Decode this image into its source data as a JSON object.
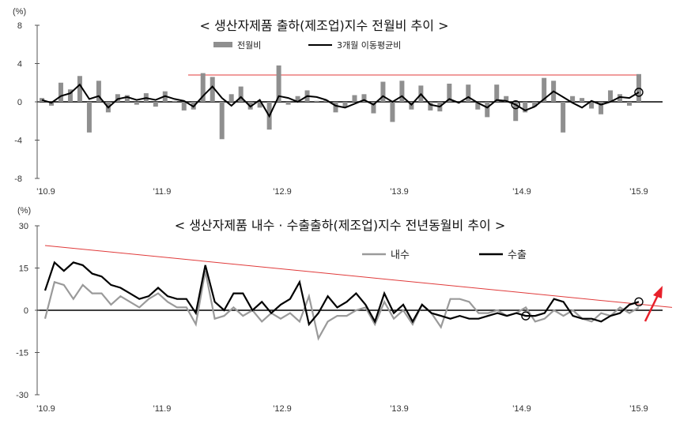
{
  "colors": {
    "bar": "#8f8f8f",
    "line_dark": "#000000",
    "line_gray": "#9a9a9a",
    "trend_red": "#e03a3a",
    "arrow_red": "#e8202a"
  },
  "chart_data": [
    {
      "type": "bar",
      "title": "< 생산자제품 출하(제조업)지수 전월비 추이 >",
      "yunit": "(%)",
      "ylim": [
        -8,
        8
      ],
      "yticks": [
        8,
        4,
        0,
        -4,
        -8
      ],
      "xtick_labels": [
        "'10.9",
        "'11.9",
        "'12.9",
        "'13.9",
        "'14.9",
        "'15.9"
      ],
      "grid": false,
      "legend_position": "top-right",
      "series": [
        {
          "name": "전월비",
          "kind": "bar",
          "values": [
            0.4,
            -0.4,
            2.0,
            1.3,
            2.7,
            -3.2,
            2.2,
            -1.1,
            0.8,
            0.7,
            -0.3,
            0.9,
            -0.5,
            1.1,
            0.1,
            -0.9,
            -0.8,
            3.0,
            2.6,
            -3.9,
            0.8,
            1.6,
            -0.8,
            -0.6,
            -2.9,
            3.8,
            -0.3,
            0.6,
            1.2,
            0.1,
            0.2,
            -1.1,
            -0.6,
            0.7,
            0.8,
            -1.2,
            2.1,
            -2.1,
            2.2,
            -0.8,
            1.7,
            -0.9,
            -1.0,
            1.9,
            -0.1,
            1.8,
            -0.8,
            -1.6,
            1.8,
            0.6,
            -2.0,
            -1.1,
            -0.5,
            2.5,
            2.2,
            -3.2,
            0.6,
            0.4,
            -0.7,
            -1.3,
            1.2,
            0.8,
            -0.4,
            2.9
          ]
        },
        {
          "name": "3개월 이동평균비",
          "kind": "line",
          "values": [
            0.2,
            -0.1,
            0.6,
            0.9,
            1.8,
            0.3,
            0.6,
            -0.6,
            0.3,
            0.5,
            0.2,
            0.4,
            0.2,
            0.6,
            0.3,
            0.1,
            -0.5,
            0.6,
            1.6,
            0.4,
            -0.4,
            0.5,
            -0.5,
            0.2,
            -1.5,
            0.6,
            0.4,
            0.0,
            0.6,
            0.5,
            0.2,
            -0.4,
            -0.6,
            -0.2,
            0.2,
            -0.3,
            0.6,
            0.0,
            0.6,
            -0.3,
            0.8,
            -0.3,
            -0.5,
            0.3,
            -0.1,
            0.5,
            -0.1,
            -0.6,
            0.2,
            0.1,
            -0.3,
            -0.9,
            -0.5,
            0.3,
            1.1,
            0.5,
            -0.1,
            -0.6,
            0.1,
            -0.3,
            0.0,
            0.5,
            0.4,
            1.0
          ]
        }
      ],
      "reference_line_y": 2.8,
      "circled_points": [
        50,
        63
      ]
    },
    {
      "type": "line",
      "title": "< 생산자제품 내수 · 수출출하(제조업)지수 전년동월비 추이 >",
      "yunit": "(%)",
      "ylim": [
        -30,
        30
      ],
      "yticks": [
        30,
        15,
        0,
        -15,
        -30
      ],
      "xtick_labels": [
        "'10.9",
        "'11.9",
        "'12.9",
        "'13.9",
        "'14.9",
        "'15.9"
      ],
      "grid": false,
      "legend_position": "top-right",
      "series": [
        {
          "name": "내수",
          "values": [
            -3,
            10,
            9,
            4,
            9,
            6,
            6,
            2,
            5,
            3,
            1,
            4,
            6,
            3,
            1,
            1,
            -5,
            14,
            -3,
            -2,
            1,
            -2,
            0,
            -4,
            -1,
            -3,
            -1,
            -4,
            5,
            -10,
            -4,
            -2,
            -2,
            0,
            1,
            -5,
            3,
            -3,
            0,
            -5,
            2,
            -1,
            -6,
            4,
            4,
            3,
            -1,
            -1,
            0,
            -2,
            -1,
            1,
            -4,
            -3,
            0,
            -2,
            0,
            -3,
            -4,
            -1,
            -2,
            1,
            -1,
            1
          ]
        },
        {
          "name": "수출",
          "values": [
            7,
            17,
            14,
            17,
            16,
            13,
            12,
            9,
            8,
            6,
            4,
            5,
            8,
            5,
            4,
            4,
            -1,
            16,
            3,
            0,
            6,
            6,
            0,
            3,
            -1,
            2,
            4,
            10,
            -5,
            -1,
            5,
            1,
            3,
            6,
            2,
            -4,
            6,
            -1,
            2,
            -4,
            2,
            -1,
            -2,
            -3,
            -2,
            -3,
            -3,
            -2,
            -1,
            -2,
            -1,
            -2,
            -2,
            -1,
            4,
            3,
            -2,
            -3,
            -3,
            -4,
            -2,
            -1,
            2,
            3
          ]
        }
      ],
      "trend_line": [
        23,
        1
      ],
      "circled_points": [
        51,
        63
      ]
    }
  ]
}
